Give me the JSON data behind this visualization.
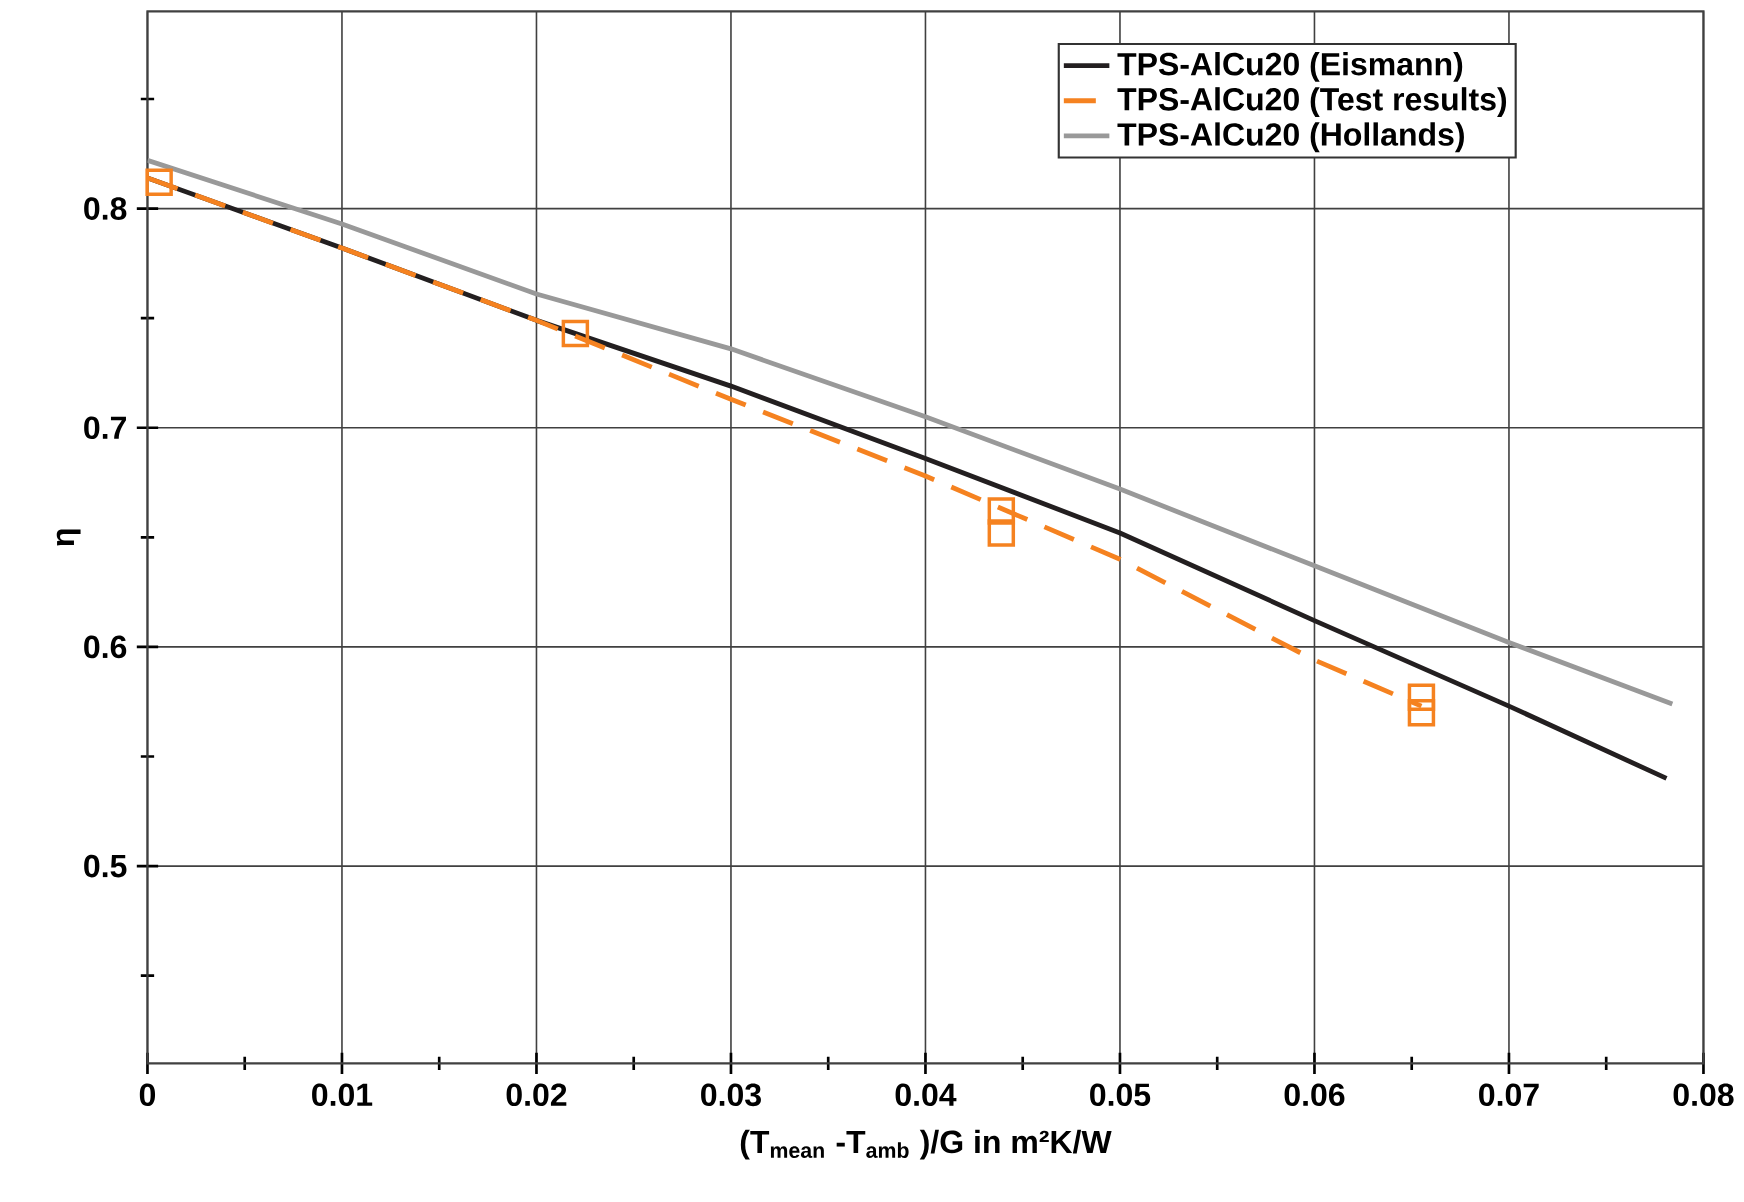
{
  "chart_data": {
    "type": "line",
    "xlabel": "(T$_{mean}$ -T$_{amb}$ )/G in m²K/W",
    "ylabel": "η",
    "xlim": [
      0,
      0.08
    ],
    "ylim": [
      0.41,
      0.89
    ],
    "xticks": [
      0,
      {
        "value": 0.005,
        "label": null
      },
      0.01,
      {
        "value": 0.015,
        "label": null
      },
      0.02,
      {
        "value": 0.025,
        "label": null
      },
      0.03,
      {
        "value": 0.035,
        "label": null
      },
      0.04,
      {
        "value": 0.045,
        "label": null
      },
      0.05,
      {
        "value": 0.055,
        "label": null
      },
      0.06,
      {
        "value": 0.065,
        "label": null
      },
      0.07,
      {
        "value": 0.075,
        "label": null
      },
      0.08
    ],
    "yticks": [
      {
        "value": 0.45,
        "label": null
      },
      0.5,
      {
        "value": 0.55,
        "label": null
      },
      0.6,
      {
        "value": 0.65,
        "label": null
      },
      0.7,
      {
        "value": 0.75,
        "label": null
      },
      0.8,
      {
        "value": 0.85,
        "label": null
      }
    ],
    "grid": true,
    "legend": "top right",
    "series": [
      {
        "name": "TPS-AlCu20 (Eismann)",
        "color": "#231f20",
        "x": [
          0,
          0.01,
          0.02,
          0.03,
          0.04,
          0.05,
          0.06,
          0.07,
          0.0781
        ],
        "values": [
          0.814,
          0.782,
          0.749,
          0.719,
          0.686,
          0.652,
          0.612,
          0.573,
          0.54
        ]
      },
      {
        "name": "TPS-AlCu20 (Test results)",
        "line_style": "dashed",
        "color": "#f58220",
        "x": [
          0,
          0.01,
          0.02,
          0.03,
          0.04,
          0.05,
          0.06,
          0.0655
        ],
        "values": [
          0.814,
          0.782,
          0.749,
          0.713,
          0.678,
          0.64,
          0.594,
          0.573
        ]
      },
      {
        "type": "scatter",
        "marker": "square",
        "color": "#f58220",
        "x": [
          0.0006,
          0.022,
          0.0439,
          0.0439,
          0.0655,
          0.0655
        ],
        "values": [
          0.812,
          0.743,
          0.662,
          0.652,
          0.577,
          0.57
        ]
      },
      {
        "name": "TPS-AlCu20 (Hollands)",
        "color": "#999999",
        "x": [
          0,
          0.01,
          0.02,
          0.03,
          0.04,
          0.05,
          0.06,
          0.07,
          0.0784
        ],
        "values": [
          0.822,
          0.793,
          0.761,
          0.736,
          0.705,
          0.672,
          0.637,
          0.602,
          0.574
        ]
      }
    ]
  }
}
